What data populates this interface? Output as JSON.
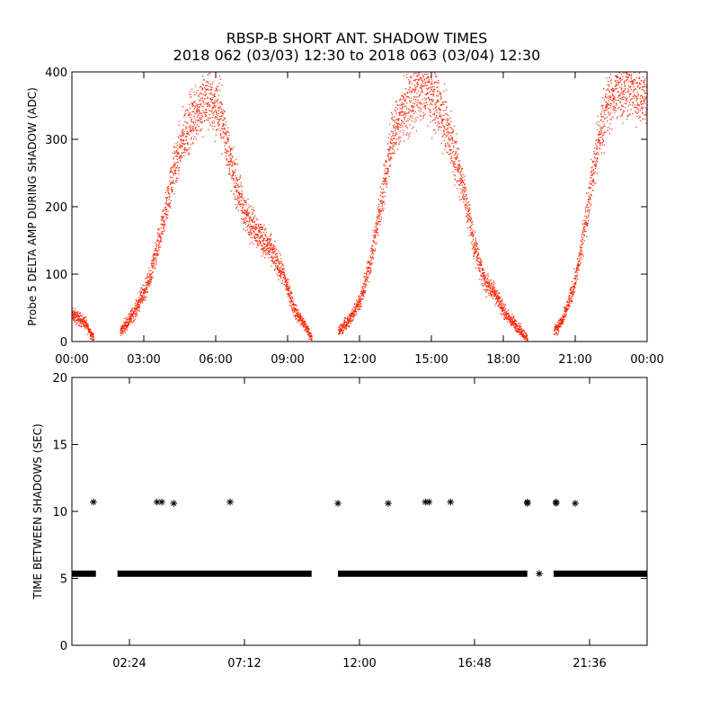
{
  "colors": {
    "background": "#ffffff",
    "axes": "#000000",
    "amp_points": "#ff2200",
    "gap_markers": "#000000"
  },
  "figure": {
    "title_line1": "RBSP-B SHORT ANT. SHADOW TIMES",
    "title_line2": "2018 062 (03/03) 12:30 to 2018 063 (03/04) 12:30"
  },
  "chart_data": [
    {
      "type": "scatter",
      "title": "",
      "ylabel": "Probe 5 DELTA AMP DURING SHADOW (ADC)",
      "xlabel": "",
      "xunits": "hours",
      "xlim": [
        0,
        24
      ],
      "ylim": [
        0,
        400
      ],
      "xtick_labels": [
        "00:00",
        "03:00",
        "06:00",
        "09:00",
        "12:00",
        "15:00",
        "18:00",
        "21:00",
        "00:00"
      ],
      "xtick_values": [
        0,
        3,
        6,
        9,
        12,
        15,
        18,
        21,
        24
      ],
      "ytick_labels": [
        "0",
        "100",
        "200",
        "300",
        "400"
      ],
      "ytick_values": [
        0,
        100,
        200,
        300,
        400
      ],
      "grid": false,
      "marker": "dot",
      "arcs": [
        {
          "x": [
            0.0,
            0.5,
            0.9
          ],
          "y": [
            40,
            30,
            5
          ]
        },
        {
          "x": [
            2.0,
            2.6,
            3.2,
            3.7,
            4.2,
            4.7,
            5.2,
            5.7,
            6.2,
            6.7,
            7.2,
            7.8,
            8.3,
            8.8,
            9.3,
            9.7,
            10.0
          ],
          "y": [
            15,
            45,
            90,
            160,
            250,
            310,
            345,
            360,
            340,
            250,
            190,
            160,
            135,
            100,
            45,
            25,
            5
          ]
        },
        {
          "x": [
            11.1,
            11.6,
            12.1,
            12.5,
            12.9,
            13.3,
            13.8,
            14.3,
            14.8,
            15.3,
            15.8,
            16.3,
            16.8,
            17.2,
            17.6,
            18.1,
            18.5,
            19.0
          ],
          "y": [
            15,
            35,
            70,
            130,
            210,
            300,
            345,
            365,
            375,
            350,
            300,
            230,
            140,
            90,
            75,
            40,
            25,
            5
          ]
        },
        {
          "x": [
            20.1,
            20.5,
            20.9,
            21.2,
            21.5,
            21.8,
            22.2,
            22.7,
            23.2,
            23.7,
            24.0
          ],
          "y": [
            15,
            35,
            80,
            130,
            200,
            270,
            340,
            375,
            380,
            370,
            360
          ]
        }
      ]
    },
    {
      "type": "scatter",
      "title": "",
      "ylabel": "TIME BETWEEN SHADOWS (SEC)",
      "xlabel": "",
      "xunits": "hours",
      "xlim": [
        0,
        24
      ],
      "ylim": [
        0,
        20
      ],
      "xtick_labels": [
        "02:24",
        "07:12",
        "12:00",
        "16:48",
        "21:36"
      ],
      "xtick_values": [
        2.4,
        7.2,
        12.0,
        16.8,
        21.6
      ],
      "ytick_labels": [
        "0",
        "5",
        "10",
        "15",
        "20"
      ],
      "ytick_values": [
        0,
        5,
        10,
        15,
        20
      ],
      "grid": false,
      "marker": "asterisk",
      "baseline": {
        "value": 5.35,
        "segments": [
          [
            0.0,
            1.0
          ],
          [
            1.9,
            10.0
          ],
          [
            11.1,
            19.0
          ],
          [
            20.1,
            24.0
          ]
        ]
      },
      "points": [
        {
          "x": 0.9,
          "y": 10.7
        },
        {
          "x": 3.55,
          "y": 10.7
        },
        {
          "x": 3.75,
          "y": 10.7
        },
        {
          "x": 4.25,
          "y": 10.6
        },
        {
          "x": 6.6,
          "y": 10.7
        },
        {
          "x": 11.1,
          "y": 10.6
        },
        {
          "x": 13.2,
          "y": 10.6
        },
        {
          "x": 14.75,
          "y": 10.7
        },
        {
          "x": 14.9,
          "y": 10.7
        },
        {
          "x": 15.8,
          "y": 10.7
        },
        {
          "x": 19.0,
          "y": 10.7
        },
        {
          "x": 19.0,
          "y": 10.6
        },
        {
          "x": 19.5,
          "y": 5.35
        },
        {
          "x": 20.2,
          "y": 10.7
        },
        {
          "x": 20.2,
          "y": 10.6
        },
        {
          "x": 21.0,
          "y": 10.6
        }
      ]
    }
  ]
}
